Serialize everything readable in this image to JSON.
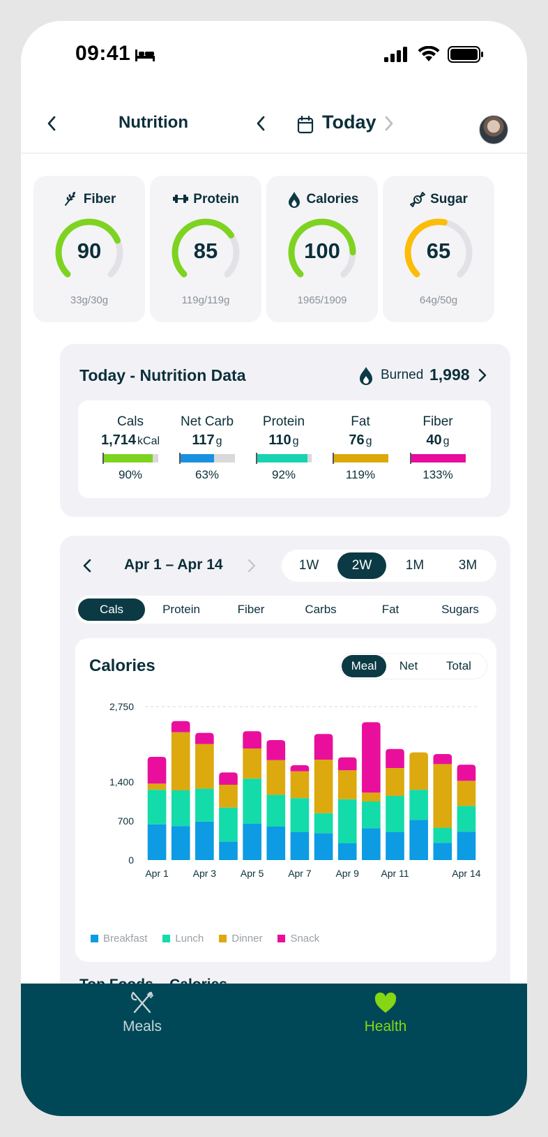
{
  "status_bar": {
    "time": "09:41"
  },
  "header": {
    "title": "Nutrition",
    "date_label": "Today"
  },
  "scores": [
    {
      "label": "Fiber",
      "icon": "wheat-icon",
      "score": "90",
      "value": 90,
      "detail": "33g/30g",
      "color": "#7ed321"
    },
    {
      "label": "Protein",
      "icon": "dumbbell-icon",
      "score": "85",
      "value": 85,
      "detail": "119g/119g",
      "color": "#7ed321"
    },
    {
      "label": "Calories",
      "icon": "flame-drop-icon",
      "score": "100",
      "value": 100,
      "detail": "1965/1909",
      "color": "#7ed321"
    },
    {
      "label": "Sugar",
      "icon": "candy-icon",
      "score": "65",
      "value": 65,
      "detail": "64g/50g",
      "color": "#fbbd08"
    }
  ],
  "nutrition_data": {
    "title": "Today - Nutrition Data",
    "burned_label": "Burned",
    "burned_value": "1,998",
    "macros": [
      {
        "name": "Cals",
        "value": "1,714",
        "unit": "kCal",
        "pct": "90%",
        "fill": 0.9,
        "color": "#7ed321"
      },
      {
        "name": "Net Carb",
        "value": "117",
        "unit": "g",
        "pct": "63%",
        "fill": 0.63,
        "color": "#1a90e0"
      },
      {
        "name": "Protein",
        "value": "110",
        "unit": "g",
        "pct": "92%",
        "fill": 0.92,
        "color": "#18d3b0"
      },
      {
        "name": "Fat",
        "value": "76",
        "unit": "g",
        "pct": "119%",
        "fill": 1.0,
        "color": "#dba90a"
      },
      {
        "name": "Fiber",
        "value": "40",
        "unit": "g",
        "pct": "133%",
        "fill": 1.0,
        "color": "#e70c9d"
      }
    ]
  },
  "history": {
    "range_label": "Apr 1 – Apr 14",
    "periods": [
      "1W",
      "2W",
      "1M",
      "3M"
    ],
    "active_period": "2W",
    "metrics": [
      "Cals",
      "Protein",
      "Fiber",
      "Carbs",
      "Fat",
      "Sugars"
    ],
    "active_metric": "Cals",
    "chart_title": "Calories",
    "modes": [
      "Meal",
      "Net",
      "Total"
    ],
    "active_mode": "Meal",
    "top_foods_title": "Top Foods – Calories"
  },
  "chart_data": {
    "type": "bar",
    "stacked": true,
    "categories": [
      "Apr 1",
      "Apr 2",
      "Apr 3",
      "Apr 4",
      "Apr 5",
      "Apr 6",
      "Apr 7",
      "Apr 8",
      "Apr 9",
      "Apr 10",
      "Apr 11",
      "Apr 12",
      "Apr 13",
      "Apr 14"
    ],
    "tick_labels": [
      "Apr 1",
      "Apr 3",
      "Apr 5",
      "Apr 7",
      "Apr 9",
      "Apr 11",
      "Apr 14"
    ],
    "yticks": [
      0,
      700,
      1400,
      2750
    ],
    "ytick_labels": [
      "0",
      "700",
      "1,400",
      "2,750"
    ],
    "ylim": [
      0,
      2750
    ],
    "series": [
      {
        "name": "Breakfast",
        "color": "#0d9be3",
        "values": [
          640,
          610,
          690,
          330,
          650,
          600,
          500,
          480,
          300,
          570,
          500,
          720,
          310,
          510
        ]
      },
      {
        "name": "Lunch",
        "color": "#14dbaa",
        "values": [
          620,
          640,
          590,
          610,
          810,
          570,
          610,
          360,
          790,
          480,
          650,
          540,
          270,
          460
        ]
      },
      {
        "name": "Dinner",
        "color": "#dca90e",
        "values": [
          110,
          1040,
          800,
          410,
          540,
          620,
          480,
          960,
          520,
          160,
          500,
          670,
          1140,
          450
        ]
      },
      {
        "name": "Snack",
        "color": "#e90f9c",
        "values": [
          480,
          200,
          200,
          220,
          310,
          360,
          110,
          460,
          230,
          1260,
          340,
          0,
          180,
          290
        ]
      }
    ],
    "grid": "top dashed line only"
  },
  "tabbar": {
    "items": [
      {
        "label": "Meals",
        "icon": "utensils-icon",
        "active": false
      },
      {
        "label": "Health",
        "icon": "heart-icon",
        "active": true
      }
    ]
  }
}
